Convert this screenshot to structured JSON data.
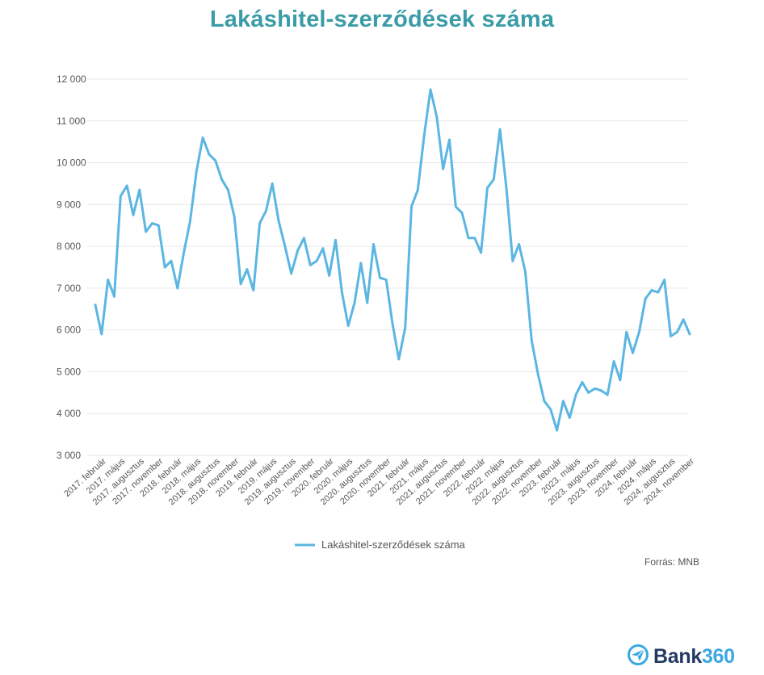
{
  "title": "Lakáshitel-szerződések száma",
  "source": "Forrás: MNB",
  "brand": {
    "name": "Bank",
    "suffix": "360",
    "logo_icon": "paper-plane-circle-icon"
  },
  "colors": {
    "line": "#5cb6e2",
    "title": "#3a9ca6",
    "grid": "#e6e6e6",
    "brand_dark": "#243a63",
    "brand_accent": "#3ba7e2"
  },
  "chart_data": {
    "type": "line",
    "title": "Lakáshitel-szerződések száma",
    "ylim": [
      3000,
      12000
    ],
    "yticks": [
      3000,
      4000,
      5000,
      6000,
      7000,
      8000,
      9000,
      10000,
      11000,
      12000
    ],
    "ytick_labels": [
      "3 000",
      "4 000",
      "5 000",
      "6 000",
      "7 000",
      "8 000",
      "9 000",
      "10 000",
      "11 000",
      "12 000"
    ],
    "grid": true,
    "legend": "bottom-center",
    "x_tick_labels": [
      "2017. február",
      "2017. május",
      "2017. augusztus",
      "2017. november",
      "2018. február",
      "2018. május",
      "2018. augusztus",
      "2018. november",
      "2019. február",
      "2019. május",
      "2019. augusztus",
      "2019. november",
      "2020. február",
      "2020. május",
      "2020. augusztus",
      "2020. november",
      "2021. február",
      "2021. május",
      "2021. augusztus",
      "2021. november",
      "2022. február",
      "2022. május",
      "2022. augusztus",
      "2022. november",
      "2023. február",
      "2023. május",
      "2023. augusztus",
      "2023. november",
      "2024. február",
      "2024. május",
      "2024. augusztus",
      "2024. november"
    ],
    "series": [
      {
        "name": "Lakáshitel-szerződések száma",
        "values": [
          6600,
          5900,
          7200,
          6800,
          9200,
          9450,
          8750,
          9350,
          8350,
          8550,
          8500,
          7500,
          7650,
          7000,
          7850,
          8600,
          9800,
          10600,
          10200,
          10050,
          9600,
          9350,
          8700,
          7100,
          7450,
          6950,
          8550,
          8850,
          9500,
          8600,
          8000,
          7350,
          7900,
          8200,
          7550,
          7650,
          7950,
          7300,
          8150,
          6900,
          6100,
          6650,
          7600,
          6650,
          8050,
          7250,
          7200,
          6150,
          5300,
          6050,
          8950,
          9350,
          10650,
          11750,
          11100,
          9850,
          10550,
          8950,
          8800,
          8200,
          8200,
          7850,
          9400,
          9600,
          10800,
          9400,
          7650,
          8050,
          7400,
          5750,
          4950,
          4300,
          4100,
          3600,
          4300,
          3900,
          4450,
          4750,
          4500,
          4600,
          4550,
          4450,
          5250,
          4800,
          5950,
          5450,
          5950,
          6750,
          6950,
          6900,
          7200,
          5850,
          5950,
          6250,
          5900
        ]
      }
    ]
  }
}
